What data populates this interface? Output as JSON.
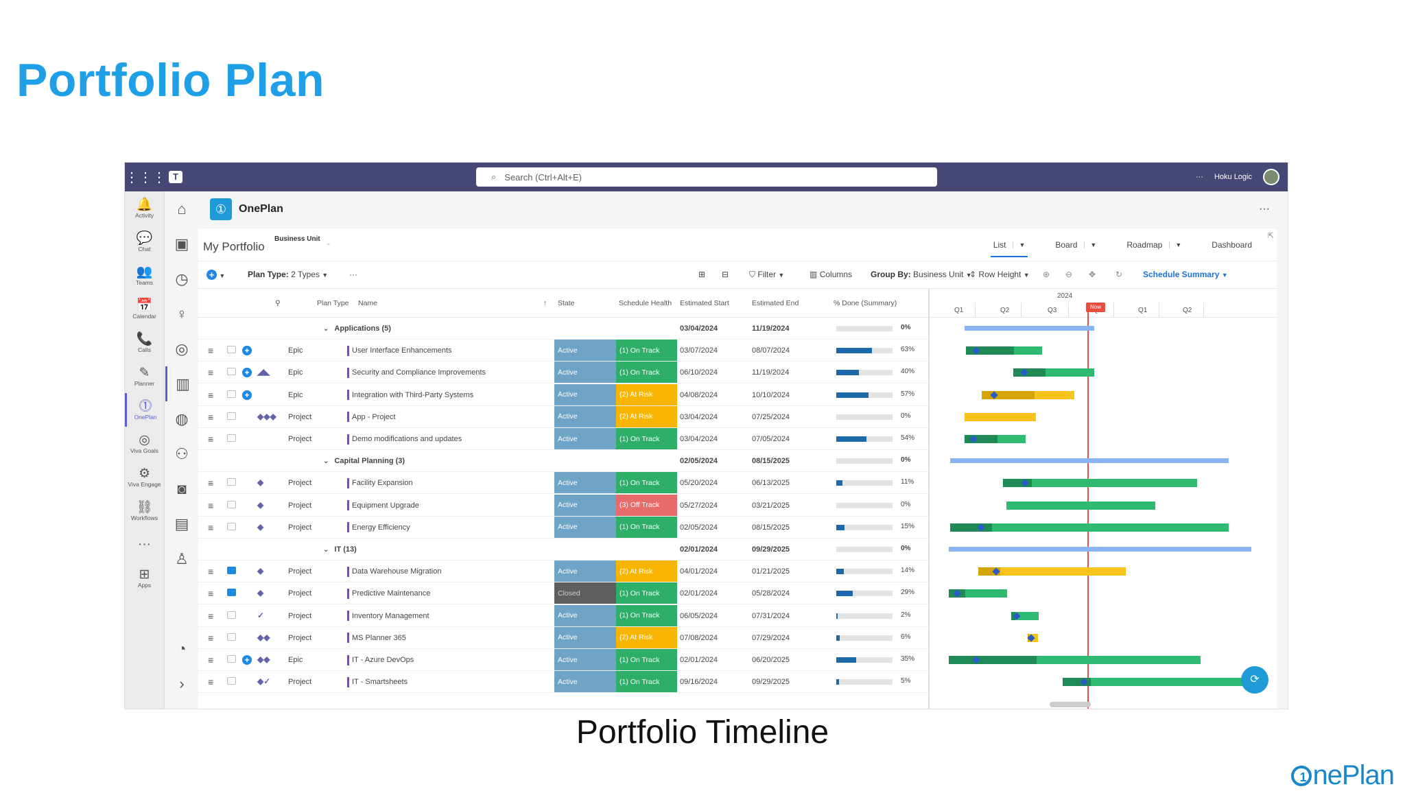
{
  "slide": {
    "title": "Portfolio Plan",
    "caption": "Portfolio Timeline",
    "brand": "nePlan",
    "brand_mark": "1"
  },
  "teams": {
    "search_placeholder": "Search (Ctrl+Alt+E)",
    "more": "···",
    "user": "Hoku Logic",
    "rail": [
      {
        "icon": "bell-icon",
        "glyph": "🔔",
        "label": "Activity"
      },
      {
        "icon": "chat-icon",
        "glyph": "💬",
        "label": "Chat"
      },
      {
        "icon": "teams-icon",
        "glyph": "👥",
        "label": "Teams"
      },
      {
        "icon": "calendar-icon",
        "glyph": "📅",
        "label": "Calendar"
      },
      {
        "icon": "phone-icon",
        "glyph": "📞",
        "label": "Calls"
      },
      {
        "icon": "planner-icon",
        "glyph": "✎",
        "label": "Planner"
      },
      {
        "icon": "oneplan-icon",
        "glyph": "⓵",
        "label": "OnePlan"
      },
      {
        "icon": "goals-icon",
        "glyph": "◎",
        "label": "Viva Goals"
      },
      {
        "icon": "engage-icon",
        "glyph": "⚙",
        "label": "Viva Engage"
      },
      {
        "icon": "workflows-icon",
        "glyph": "⛓",
        "label": "Workflows"
      },
      {
        "icon": "more-icon",
        "glyph": "···",
        "label": ""
      },
      {
        "icon": "apps-icon",
        "glyph": "⊞",
        "label": "Apps"
      }
    ]
  },
  "app": {
    "name": "OnePlan",
    "more": "···",
    "portfolio_title": "My Portfolio",
    "business_unit_label": "Business Unit",
    "views": [
      "List",
      "Board",
      "Roadmap",
      "Dashboard"
    ],
    "active_view": "List"
  },
  "toolbar": {
    "plan_type_label": "Plan Type:",
    "plan_type_value": "2 Types",
    "more": "···",
    "filter": "Filter",
    "columns": "Columns",
    "group_by_label": "Group By:",
    "group_by_value": "Business Unit",
    "row_height": "Row Height",
    "schedule_summary": "Schedule Summary"
  },
  "columns": {
    "plan_type": "Plan Type",
    "name": "Name",
    "state": "State",
    "schedule_health": "Schedule Health",
    "estimated_start": "Estimated Start",
    "estimated_end": "Estimated End",
    "percent_done": "% Done (Summary)"
  },
  "gantt": {
    "year": "2024",
    "quarters": [
      "Q1",
      "Q2",
      "Q3",
      "Q4",
      "Q1",
      "Q2"
    ],
    "now": "Now"
  },
  "rows": [
    {
      "group": true,
      "name": "Applications (5)",
      "start": "03/04/2024",
      "end": "11/19/2024",
      "pct": 0,
      "pct_label": "0%"
    },
    {
      "type": "Epic",
      "name": "User Interface Enhancements",
      "state": "Active",
      "health": "(1) On Track",
      "h": "on",
      "start": "03/07/2024",
      "end": "08/07/2024",
      "pct": 63,
      "pct_label": "63%",
      "plus": true,
      "logos": ""
    },
    {
      "type": "Epic",
      "name": "Security and Compliance Improvements",
      "state": "Active",
      "health": "(1) On Track",
      "h": "on",
      "start": "06/10/2024",
      "end": "11/19/2024",
      "pct": 40,
      "pct_label": "40%",
      "plus": true,
      "logos": "◢◣"
    },
    {
      "type": "Epic",
      "name": "Integration with Third-Party Systems",
      "state": "Active",
      "health": "(2) At Risk",
      "h": "risk",
      "start": "04/08/2024",
      "end": "10/10/2024",
      "pct": 57,
      "pct_label": "57%",
      "plus": true,
      "logos": ""
    },
    {
      "type": "Project",
      "name": "App - Project",
      "state": "Active",
      "health": "(2) At Risk",
      "h": "risk",
      "start": "03/04/2024",
      "end": "07/25/2024",
      "pct": 0,
      "pct_label": "0%",
      "logos": "◆◆◆"
    },
    {
      "type": "Project",
      "name": "Demo modifications and updates",
      "state": "Active",
      "health": "(1) On Track",
      "h": "on",
      "start": "03/04/2024",
      "end": "07/05/2024",
      "pct": 54,
      "pct_label": "54%",
      "logos": ""
    },
    {
      "group": true,
      "name": "Capital Planning (3)",
      "start": "02/05/2024",
      "end": "08/15/2025",
      "pct": 0,
      "pct_label": "0%"
    },
    {
      "type": "Project",
      "name": "Facility Expansion",
      "state": "Active",
      "health": "(1) On Track",
      "h": "on",
      "start": "05/20/2024",
      "end": "06/13/2025",
      "pct": 11,
      "pct_label": "11%",
      "logos": "◆"
    },
    {
      "type": "Project",
      "name": "Equipment Upgrade",
      "state": "Active",
      "health": "(3) Off Track",
      "h": "off",
      "start": "05/27/2024",
      "end": "03/21/2025",
      "pct": 0,
      "pct_label": "0%",
      "logos": "◆"
    },
    {
      "type": "Project",
      "name": "Energy Efficiency",
      "state": "Active",
      "health": "(1) On Track",
      "h": "on",
      "start": "02/05/2024",
      "end": "08/15/2025",
      "pct": 15,
      "pct_label": "15%",
      "logos": "◆"
    },
    {
      "group": true,
      "name": "IT (13)",
      "start": "02/01/2024",
      "end": "09/29/2025",
      "pct": 0,
      "pct_label": "0%"
    },
    {
      "type": "Project",
      "name": "Data Warehouse Migration",
      "state": "Active",
      "health": "(2) At Risk",
      "h": "risk",
      "start": "04/01/2024",
      "end": "01/21/2025",
      "pct": 14,
      "pct_label": "14%",
      "logos": "◆",
      "comment": true
    },
    {
      "type": "Project",
      "name": "Predictive Maintenance",
      "state": "Closed",
      "health": "(1) On Track",
      "h": "on",
      "start": "02/01/2024",
      "end": "05/28/2024",
      "pct": 29,
      "pct_label": "29%",
      "logos": "◆",
      "comment": true
    },
    {
      "type": "Project",
      "name": "Inventory Management",
      "state": "Active",
      "health": "(1) On Track",
      "h": "on",
      "start": "06/05/2024",
      "end": "07/31/2024",
      "pct": 2,
      "pct_label": "2%",
      "logos": "✓"
    },
    {
      "type": "Project",
      "name": "MS Planner 365",
      "state": "Active",
      "health": "(2) At Risk",
      "h": "risk",
      "start": "07/08/2024",
      "end": "07/29/2024",
      "pct": 6,
      "pct_label": "6%",
      "logos": "◆◆"
    },
    {
      "type": "Epic",
      "name": "IT - Azure DevOps",
      "state": "Active",
      "health": "(1) On Track",
      "h": "on",
      "start": "02/01/2024",
      "end": "06/20/2025",
      "pct": 35,
      "pct_label": "35%",
      "plus": true,
      "logos": "◆◆"
    },
    {
      "type": "Project",
      "name": "IT - Smartsheets",
      "state": "Active",
      "health": "(1) On Track",
      "h": "on",
      "start": "09/16/2024",
      "end": "09/29/2025",
      "pct": 5,
      "pct_label": "5%",
      "logos": "◆✓"
    }
  ]
}
